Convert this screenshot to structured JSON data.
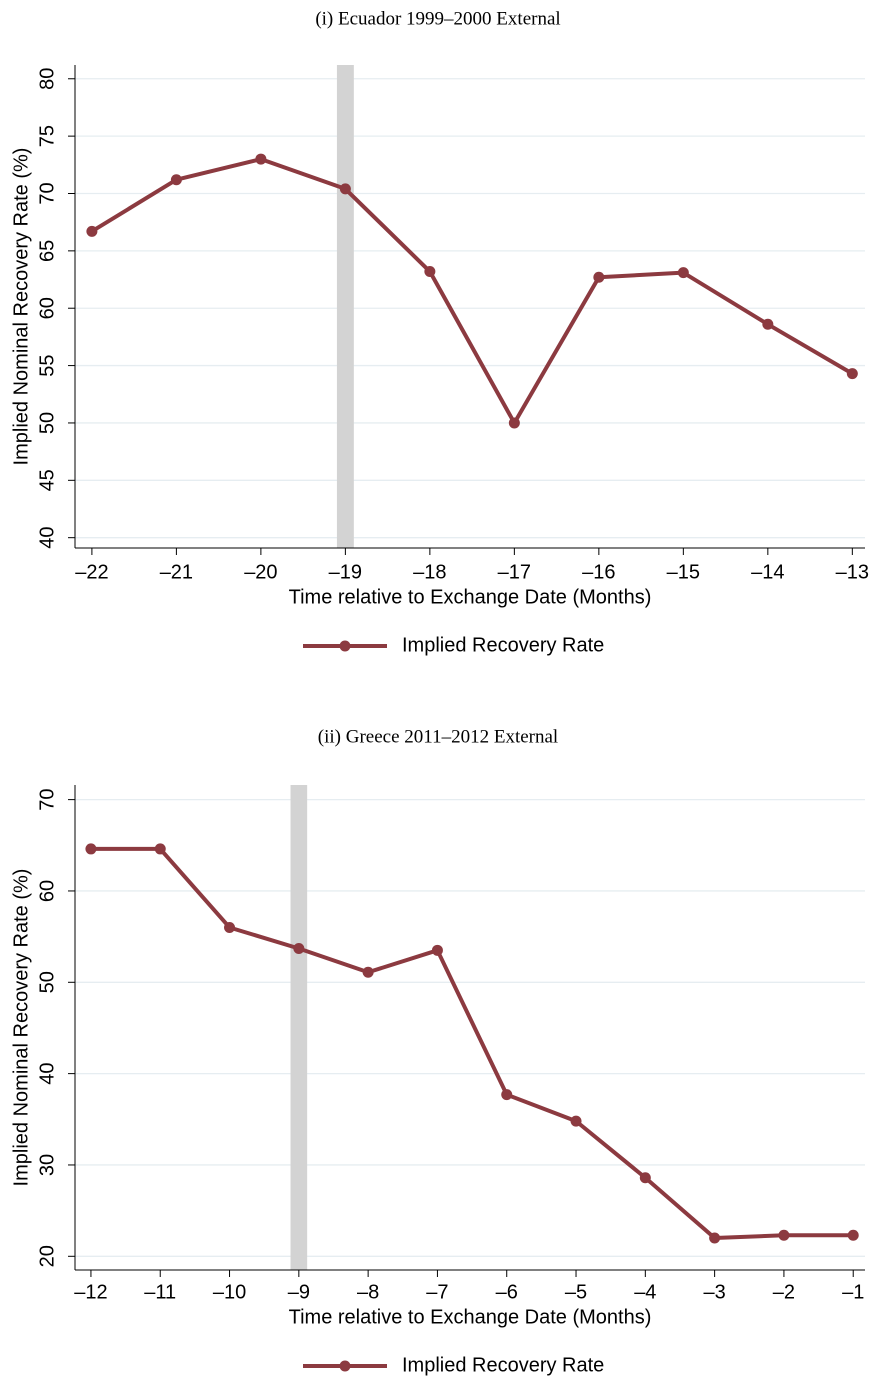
{
  "chart_data": [
    {
      "type": "line",
      "title": "(i) Ecuador 1999–2000 External",
      "x_label": "Time relative to Exchange Date (Months)",
      "y_label": "Implied Nominal Recovery Rate (%)",
      "x": [
        -22,
        -21,
        -20,
        -19,
        -18,
        -17,
        -16,
        -15,
        -14,
        -13
      ],
      "series": [
        {
          "name": "Implied Recovery Rate",
          "color": "#8c3a40",
          "values": [
            66.7,
            71.2,
            73.0,
            70.4,
            63.2,
            50.0,
            62.7,
            63.1,
            58.6,
            54.3
          ]
        }
      ],
      "xlim": [
        -22.2,
        -12.85
      ],
      "ylim": [
        39.1,
        81.2
      ],
      "xticks": [
        {
          "value": -22,
          "label": "–22"
        },
        {
          "value": -21,
          "label": "–21"
        },
        {
          "value": -20,
          "label": "–20"
        },
        {
          "value": -19,
          "label": "–19"
        },
        {
          "value": -18,
          "label": "–18"
        },
        {
          "value": -17,
          "label": "–17"
        },
        {
          "value": -16,
          "label": "–16"
        },
        {
          "value": -15,
          "label": "–15"
        },
        {
          "value": -14,
          "label": "–14"
        },
        {
          "value": -13,
          "label": "–13"
        }
      ],
      "yticks": [
        40,
        45,
        50,
        55,
        60,
        65,
        70,
        75,
        80
      ],
      "grid": true,
      "legend": "bottom",
      "shaded_band": [
        -19.1,
        -18.9
      ],
      "band_color": "#d3d3d3"
    },
    {
      "type": "line",
      "title": "(ii) Greece 2011–2012 External",
      "x_label": "Time relative to Exchange Date (Months)",
      "y_label": "Implied Nominal Recovery Rate (%)",
      "x": [
        -12,
        -11,
        -10,
        -9,
        -8,
        -7,
        -6,
        -5,
        -4,
        -3,
        -2,
        -1
      ],
      "series": [
        {
          "name": "Implied Recovery Rate",
          "color": "#8c3a40",
          "values": [
            64.6,
            64.6,
            56.0,
            53.7,
            51.1,
            53.5,
            37.7,
            34.8,
            28.6,
            22.0,
            22.3,
            22.3
          ]
        }
      ],
      "xlim": [
        -12.23,
        -0.83
      ],
      "ylim": [
        18.5,
        71.6
      ],
      "xticks": [
        {
          "value": -12,
          "label": "–12"
        },
        {
          "value": -11,
          "label": "–11"
        },
        {
          "value": -10,
          "label": "–10"
        },
        {
          "value": -9,
          "label": "–9"
        },
        {
          "value": -8,
          "label": "–8"
        },
        {
          "value": -7,
          "label": "–7"
        },
        {
          "value": -6,
          "label": "–6"
        },
        {
          "value": -5,
          "label": "–5"
        },
        {
          "value": -4,
          "label": "–4"
        },
        {
          "value": -3,
          "label": "–3"
        },
        {
          "value": -2,
          "label": "–2"
        },
        {
          "value": -1,
          "label": "–1"
        }
      ],
      "yticks": [
        20,
        30,
        40,
        50,
        60,
        70
      ],
      "grid": true,
      "legend": "bottom",
      "shaded_band": [
        -9.12,
        -8.88
      ],
      "band_color": "#d3d3d3"
    }
  ]
}
